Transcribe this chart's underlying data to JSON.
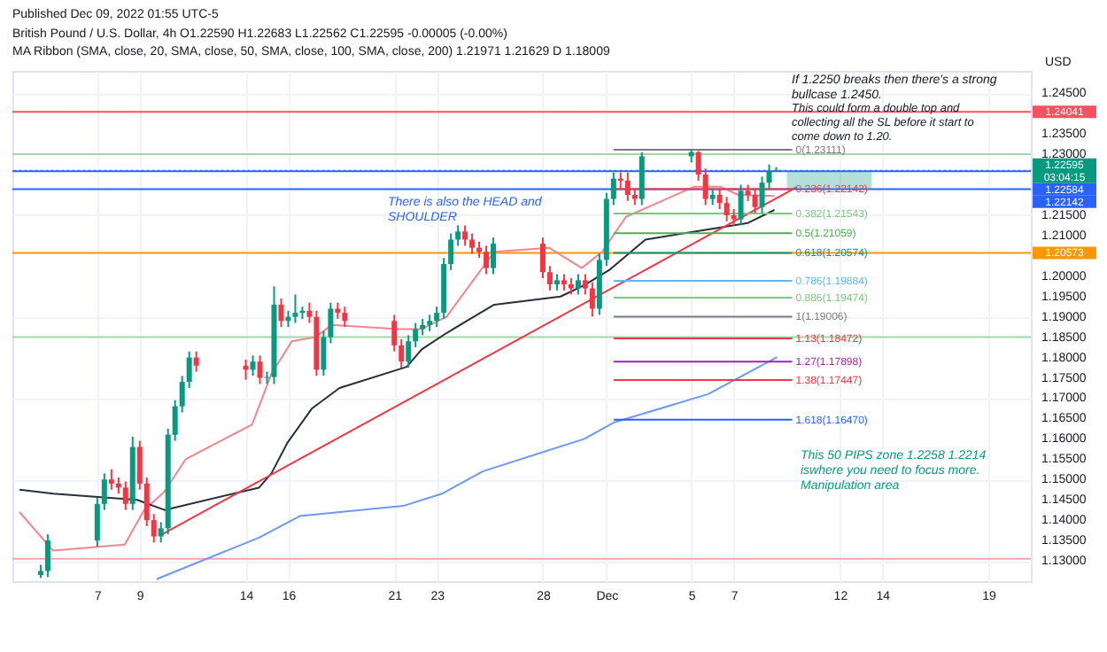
{
  "chart_data": {
    "type": "candlestick",
    "title": "British Pound / U.S. Dollar, 4h  O1.22590 H1.22683 L1.22562 C1.22595 -0.00005 (-0.00%)",
    "subtitle": "MA Ribbon (SMA, close, 20, SMA, close, 50, SMA, close, 100, SMA, close, 200)  1.21971  1.21629  D  1.18009",
    "ylabel": "USD",
    "annotations": [
      "Published Dec 09, 2022 01:55 UTC-5",
      "If 1.2250 breaks then there's a strong\nbullcase 1.2450.",
      "This could form a double top and\ncollecting all the SL before it start to\ncome down to 1.20.",
      "This 50 PIPS zone 1.2258 1.2214\niswhere you need to focus more.\nManipulation area",
      "There is also the HEAD and\nSHOULDER"
    ],
    "x": [
      "2022-11-04T08:00",
      "2022-11-04T16:00",
      "2022-11-07T00:00",
      "2022-11-07T08:00",
      "2022-11-07T16:00",
      "2022-11-08T00:00",
      "2022-11-08T08:00",
      "2022-11-08T16:00",
      "2022-11-09T00:00",
      "2022-11-09T08:00",
      "2022-11-09T16:00",
      "2022-11-10T00:00",
      "2022-11-10T08:00",
      "2022-11-10T16:00",
      "2022-11-11T00:00",
      "2022-11-11T08:00",
      "2022-11-11T16:00",
      "2022-11-14T00:00",
      "2022-11-14T08:00",
      "2022-11-14T16:00",
      "2022-11-15T00:00",
      "2022-11-15T08:00",
      "2022-11-15T16:00",
      "2022-11-16T00:00",
      "2022-11-16T08:00",
      "2022-11-16T16:00",
      "2022-11-17T00:00",
      "2022-11-17T08:00",
      "2022-11-17T16:00",
      "2022-11-18T00:00",
      "2022-11-18T08:00",
      "2022-11-18T16:00",
      "2022-11-21T00:00",
      "2022-11-21T08:00",
      "2022-11-21T16:00",
      "2022-11-22T00:00",
      "2022-11-22T08:00",
      "2022-11-22T16:00",
      "2022-11-23T00:00",
      "2022-11-23T08:00",
      "2022-11-23T16:00",
      "2022-11-24T00:00",
      "2022-11-24T08:00",
      "2022-11-24T16:00",
      "2022-11-25T00:00",
      "2022-11-25T08:00",
      "2022-11-25T16:00",
      "2022-11-28T00:00",
      "2022-11-28T08:00",
      "2022-11-28T16:00",
      "2022-11-29T00:00",
      "2022-11-29T08:00",
      "2022-11-29T16:00",
      "2022-11-30T00:00",
      "2022-11-30T08:00",
      "2022-11-30T16:00",
      "2022-12-01T00:00",
      "2022-12-01T08:00",
      "2022-12-01T16:00",
      "2022-12-02T00:00",
      "2022-12-02T08:00",
      "2022-12-02T16:00",
      "2022-12-05T00:00",
      "2022-12-05T08:00",
      "2022-12-05T16:00",
      "2022-12-06T00:00",
      "2022-12-06T08:00",
      "2022-12-06T16:00",
      "2022-12-07T00:00",
      "2022-12-07T08:00",
      "2022-12-07T16:00",
      "2022-12-08T00:00",
      "2022-12-08T08:00",
      "2022-12-08T16:00",
      "2022-12-09T00:00"
    ],
    "ohlc": [
      [
        1.1265,
        1.129,
        1.1258,
        1.1275
      ],
      [
        1.1275,
        1.1365,
        1.126,
        1.135
      ],
      [
        1.135,
        1.1455,
        1.1335,
        1.144
      ],
      [
        1.144,
        1.1515,
        1.1425,
        1.15
      ],
      [
        1.15,
        1.1525,
        1.1475,
        1.149
      ],
      [
        1.149,
        1.1505,
        1.1465,
        1.148
      ],
      [
        1.148,
        1.1495,
        1.1425,
        1.144
      ],
      [
        1.144,
        1.1605,
        1.1425,
        1.158
      ],
      [
        1.158,
        1.1595,
        1.1475,
        1.149
      ],
      [
        1.149,
        1.1505,
        1.1385,
        1.14
      ],
      [
        1.14,
        1.1415,
        1.1345,
        1.136
      ],
      [
        1.136,
        1.1395,
        1.1345,
        1.138
      ],
      [
        1.138,
        1.1625,
        1.1365,
        1.161
      ],
      [
        1.161,
        1.1695,
        1.1595,
        1.168
      ],
      [
        1.168,
        1.1755,
        1.1665,
        1.174
      ],
      [
        1.174,
        1.1815,
        1.1725,
        1.18
      ],
      [
        1.18,
        1.1815,
        1.1765,
        1.178
      ],
      [
        1.178,
        1.1795,
        1.1745,
        1.177
      ],
      [
        1.177,
        1.1805,
        1.1755,
        1.179
      ],
      [
        1.179,
        1.1805,
        1.1735,
        1.175
      ],
      [
        1.175,
        1.1765,
        1.1735,
        1.1752
      ],
      [
        1.1752,
        1.1975,
        1.1735,
        1.193
      ],
      [
        1.193,
        1.1945,
        1.1875,
        1.189
      ],
      [
        1.189,
        1.1915,
        1.1875,
        1.19
      ],
      [
        1.19,
        1.1955,
        1.1885,
        1.191
      ],
      [
        1.191,
        1.1925,
        1.1895,
        1.1915
      ],
      [
        1.1915,
        1.1935,
        1.1885,
        1.19
      ],
      [
        1.19,
        1.1915,
        1.1755,
        1.177
      ],
      [
        1.177,
        1.1865,
        1.1755,
        1.185
      ],
      [
        1.185,
        1.1935,
        1.1835,
        1.192
      ],
      [
        1.192,
        1.1935,
        1.1895,
        1.191
      ],
      [
        1.191,
        1.1925,
        1.1875,
        1.189
      ],
      [
        1.189,
        1.1905,
        1.1815,
        1.183
      ],
      [
        1.183,
        1.1845,
        1.1775,
        1.179
      ],
      [
        1.179,
        1.1855,
        1.1775,
        1.184
      ],
      [
        1.184,
        1.1885,
        1.1825,
        1.187
      ],
      [
        1.187,
        1.1895,
        1.1855,
        1.188
      ],
      [
        1.188,
        1.1905,
        1.1865,
        1.189
      ],
      [
        1.189,
        1.1925,
        1.1875,
        1.191
      ],
      [
        1.191,
        1.2045,
        1.1895,
        1.203
      ],
      [
        1.203,
        1.2105,
        1.2015,
        1.209
      ],
      [
        1.209,
        1.2125,
        1.2075,
        1.211
      ],
      [
        1.211,
        1.2125,
        1.2075,
        1.209
      ],
      [
        1.209,
        1.2105,
        1.2055,
        1.207
      ],
      [
        1.207,
        1.2085,
        1.2045,
        1.206
      ],
      [
        1.206,
        1.2075,
        1.2005,
        1.202
      ],
      [
        1.202,
        1.2095,
        1.2005,
        1.208
      ],
      [
        1.208,
        1.2095,
        1.1995,
        1.201
      ],
      [
        1.201,
        1.2025,
        1.1965,
        1.198
      ],
      [
        1.198,
        1.2005,
        1.1965,
        1.199
      ],
      [
        1.199,
        1.2005,
        1.1965,
        1.198
      ],
      [
        1.198,
        1.1995,
        1.1955,
        1.197
      ],
      [
        1.197,
        1.2005,
        1.1955,
        1.199
      ],
      [
        1.199,
        1.2005,
        1.1955,
        1.197
      ],
      [
        1.197,
        1.1985,
        1.19006,
        1.192
      ],
      [
        1.192,
        1.2055,
        1.1905,
        1.204
      ],
      [
        1.204,
        1.2205,
        1.2025,
        1.219
      ],
      [
        1.219,
        1.2255,
        1.2175,
        1.224
      ],
      [
        1.224,
        1.2255,
        1.2215,
        1.2235
      ],
      [
        1.2235,
        1.2255,
        1.2185,
        1.22
      ],
      [
        1.22,
        1.2215,
        1.2175,
        1.219
      ],
      [
        1.219,
        1.2305,
        1.2175,
        1.2295
      ],
      [
        1.2295,
        1.23111,
        1.228,
        1.2305
      ],
      [
        1.2305,
        1.2308,
        1.2235,
        1.225
      ],
      [
        1.225,
        1.2265,
        1.2175,
        1.219
      ],
      [
        1.219,
        1.2215,
        1.2175,
        1.22
      ],
      [
        1.22,
        1.2215,
        1.2165,
        1.218
      ],
      [
        1.218,
        1.2195,
        1.2135,
        1.215
      ],
      [
        1.215,
        1.2165,
        1.2125,
        1.214
      ],
      [
        1.214,
        1.2225,
        1.2125,
        1.221
      ],
      [
        1.221,
        1.2225,
        1.2185,
        1.22
      ],
      [
        1.22,
        1.2215,
        1.2155,
        1.217
      ],
      [
        1.217,
        1.2245,
        1.2155,
        1.223
      ],
      [
        1.223,
        1.2275,
        1.2215,
        1.2259
      ],
      [
        1.2259,
        1.22683,
        1.22562,
        1.22595
      ]
    ],
    "series": [
      {
        "type": "line",
        "color": "#f7848c",
        "x": [
          "2022-11-03T08:00",
          "2022-11-04T22:00",
          "2022-11-08T07:00",
          "2022-11-09T05:00",
          "2022-11-10T04:00",
          "2022-11-11T04:00",
          "2022-11-14T07:00",
          "2022-11-15T05:00",
          "2022-11-16T04:00",
          "2022-11-17T07:00",
          "2022-11-18T01:00",
          "2022-11-21T04:00",
          "2022-11-22T07:00",
          "2022-11-23T11:00",
          "2022-11-24T14:00",
          "2022-11-25T17:00",
          "2022-11-28T07:00",
          "2022-11-29T20:00",
          "2022-11-30T19:00",
          "2022-12-01T22:00",
          "2022-12-05T03:00",
          "2022-12-06T09:00",
          "2022-12-07T05:00",
          "2022-12-08T22:00"
        ],
        "values": [
          1.142,
          1.1325,
          1.134,
          1.1425,
          1.147,
          1.155,
          1.1635,
          1.176,
          1.184,
          1.185,
          1.188,
          1.187,
          1.187,
          1.19,
          1.198,
          1.206,
          1.207,
          1.202,
          1.206,
          1.2146,
          1.222,
          1.222,
          1.22,
          1.21971
        ]
      },
      {
        "type": "line",
        "color": "#2a2e39",
        "x": [
          "2022-11-03T08:00",
          "2022-11-04T22:00",
          "2022-11-08T21:00",
          "2022-11-10T04:00",
          "2022-11-14T15:00",
          "2022-11-15T05:00",
          "2022-11-15T23:00",
          "2022-11-17T03:00",
          "2022-11-18T10:00",
          "2022-11-21T14:00",
          "2022-11-22T07:00",
          "2022-11-23T11:00",
          "2022-11-24T14:00",
          "2022-11-25T17:00",
          "2022-11-28T20:00",
          "2022-11-29T23:00",
          "2022-12-01T03:00",
          "2022-12-02T20:00",
          "2022-12-06T09:00",
          "2022-12-07T16:00",
          "2022-12-08T22:00"
        ],
        "values": [
          1.1475,
          1.1465,
          1.145,
          1.1425,
          1.148,
          1.1515,
          1.159,
          1.1675,
          1.1725,
          1.1777,
          1.182,
          1.186,
          1.1895,
          1.193,
          1.195,
          1.1978,
          1.2015,
          1.209,
          1.212,
          1.2131,
          1.21629
        ]
      },
      {
        "type": "line",
        "color": "#6f97f7",
        "x": [
          "2022-11-09T19:00",
          "2022-11-14T15:00",
          "2022-11-16T13:00",
          "2022-11-21T10:00",
          "2022-11-23T06:00",
          "2022-11-25T04:00",
          "2022-11-29T23:00",
          "2022-12-01T08:00",
          "2022-12-05T19:00",
          "2022-12-09T01:00"
        ],
        "values": [
          1.1255,
          1.1357,
          1.141,
          1.1435,
          1.1465,
          1.152,
          1.16,
          1.164,
          1.171,
          1.18009
        ]
      },
      {
        "type": "line",
        "color": "#f23645",
        "x": [
          "2022-11-10T02:00",
          "2022-12-09T23:00"
        ],
        "values": [
          1.1366,
          1.2219
        ]
      },
      {
        "type": "line",
        "color": "#089981",
        "x": [
          "2022-12-09T12:00",
          "2022-12-13T12:00"
        ],
        "values": [
          null,
          null
        ],
        "lower": [
          1.2214,
          1.2214
        ],
        "upper": [
          1.2258,
          1.2258
        ]
      },
      {
        "type": "line",
        "name": "0(1.23111)",
        "color": "#787b86",
        "x": [
          "2022-12-01T08:00",
          "2022-12-09T18:00"
        ],
        "values": [
          1.23111,
          1.23111
        ]
      },
      {
        "type": "line",
        "name": "0.236(1.22142)",
        "color": "#f23645",
        "x": [
          "2022-12-01T08:00",
          "2022-12-09T18:00"
        ],
        "values": [
          1.22142,
          1.22142
        ]
      },
      {
        "type": "line",
        "name": "0.382(1.21543)",
        "color": "#81c784",
        "x": [
          "2022-12-01T08:00",
          "2022-12-09T18:00"
        ],
        "values": [
          1.21543,
          1.21543
        ]
      },
      {
        "type": "line",
        "name": "0.5(1.21059)",
        "color": "#4caf50",
        "x": [
          "2022-12-01T08:00",
          "2022-12-09T18:00"
        ],
        "values": [
          1.21059,
          1.21059
        ]
      },
      {
        "type": "line",
        "name": "0.618(1.20574)",
        "color": "#089981",
        "x": [
          "2022-12-01T08:00",
          "2022-12-09T18:00"
        ],
        "values": [
          1.20574,
          1.20574
        ]
      },
      {
        "type": "line",
        "name": "0.786(1.19884)",
        "color": "#64b5f6",
        "x": [
          "2022-12-01T08:00",
          "2022-12-09T18:00"
        ],
        "values": [
          1.19884,
          1.19884
        ]
      },
      {
        "type": "line",
        "name": "0.886(1.19474)",
        "color": "#81c784",
        "x": [
          "2022-12-01T08:00",
          "2022-12-09T18:00"
        ],
        "values": [
          1.19474,
          1.19474
        ]
      },
      {
        "type": "line",
        "name": "1(1.19006)",
        "color": "#787b86",
        "x": [
          "2022-12-01T08:00",
          "2022-12-09T18:00"
        ],
        "values": [
          1.19006,
          1.19006
        ]
      },
      {
        "type": "line",
        "name": "1.13(1.18472)",
        "color": "#f23645",
        "x": [
          "2022-12-01T08:00",
          "2022-12-09T18:00"
        ],
        "values": [
          1.18472,
          1.18472
        ]
      },
      {
        "type": "line",
        "name": "1.27(1.17898)",
        "color": "#9c27b0",
        "x": [
          "2022-12-01T08:00",
          "2022-12-09T18:00"
        ],
        "values": [
          1.17898,
          1.17898
        ]
      },
      {
        "type": "line",
        "name": "1.38(1.17447)",
        "color": "#f23645",
        "x": [
          "2022-12-01T08:00",
          "2022-12-09T18:00"
        ],
        "values": [
          1.17447,
          1.17447
        ]
      },
      {
        "type": "line",
        "name": "1.618(1.16470)",
        "color": "#2962ff",
        "x": [
          "2022-12-01T08:00",
          "2022-12-09T18:00"
        ],
        "values": [
          1.1647,
          1.1647
        ]
      }
    ],
    "ref_lines": [
      {
        "axis": "y",
        "value": 1.24041,
        "label": "1.24041",
        "color": "#f7525f"
      },
      {
        "axis": "y",
        "value": 1.23,
        "label": null,
        "color": "#a5d6a7"
      },
      {
        "axis": "y",
        "value": 1.22595,
        "label": "1.22595\n03:04:15",
        "color": "#089981",
        "line_style": "dotted"
      },
      {
        "axis": "y",
        "value": 1.22584,
        "label": "1.22584",
        "color": "#2962ff"
      },
      {
        "axis": "y",
        "value": 1.22142,
        "label": "1.22142",
        "color": "#2962ff"
      },
      {
        "axis": "y",
        "value": 1.20573,
        "label": "1.20573",
        "color": "#ff9800"
      },
      {
        "axis": "y",
        "value": 1.185,
        "label": null,
        "color": "#a5d6a7"
      },
      {
        "axis": "y",
        "value": 1.1305,
        "label": null,
        "color": "#f7a5ab"
      }
    ],
    "xlim": [
      "2022-11-03",
      "2022-12-21"
    ],
    "xticks": [
      {
        "value": "2022-11-07",
        "label": "7"
      },
      {
        "value": "2022-11-09",
        "label": "9"
      },
      {
        "value": "2022-11-14",
        "label": "14"
      },
      {
        "value": "2022-11-16",
        "label": "16"
      },
      {
        "value": "2022-11-21",
        "label": "21"
      },
      {
        "value": "2022-11-23",
        "label": "23"
      },
      {
        "value": "2022-11-28",
        "label": "28"
      },
      {
        "value": "2022-12-01",
        "label": "Dec"
      },
      {
        "value": "2022-12-05",
        "label": "5"
      },
      {
        "value": "2022-12-07",
        "label": "7"
      },
      {
        "value": "2022-12-12",
        "label": "12"
      },
      {
        "value": "2022-12-14",
        "label": "14"
      },
      {
        "value": "2022-12-19",
        "label": "19"
      }
    ],
    "ylim": [
      1.125,
      1.2505
    ],
    "yticks": [
      {
        "value": 1.13,
        "label": "1.13000"
      },
      {
        "value": 1.135,
        "label": "1.13500"
      },
      {
        "value": 1.14,
        "label": "1.14000"
      },
      {
        "value": 1.145,
        "label": "1.14500"
      },
      {
        "value": 1.15,
        "label": "1.15000"
      },
      {
        "value": 1.155,
        "label": "1.15500"
      },
      {
        "value": 1.16,
        "label": "1.16000"
      },
      {
        "value": 1.165,
        "label": "1.16500"
      },
      {
        "value": 1.17,
        "label": "1.17000"
      },
      {
        "value": 1.175,
        "label": "1.17500"
      },
      {
        "value": 1.18,
        "label": "1.18000"
      },
      {
        "value": 1.185,
        "label": "1.18500"
      },
      {
        "value": 1.19,
        "label": "1.19000"
      },
      {
        "value": 1.195,
        "label": "1.19500"
      },
      {
        "value": 1.2,
        "label": "1.20000"
      },
      {
        "value": 1.21,
        "label": "1.21000"
      },
      {
        "value": 1.215,
        "label": "1.21500"
      },
      {
        "value": 1.23,
        "label": "1.23000"
      },
      {
        "value": 1.235,
        "label": "1.23500"
      },
      {
        "value": 1.24,
        "label": null
      },
      {
        "value": 1.245,
        "label": "1.24500"
      }
    ],
    "grid": true
  }
}
